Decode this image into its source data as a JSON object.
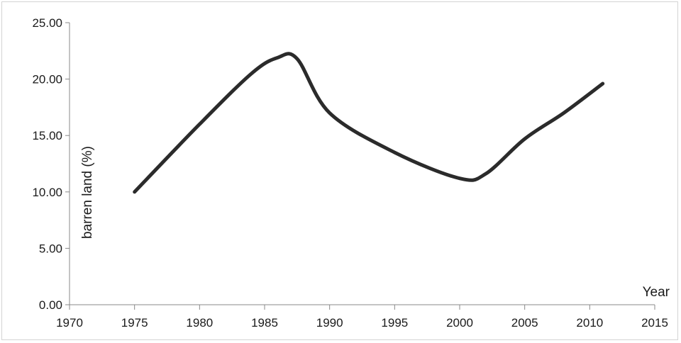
{
  "chart_data": {
    "type": "line",
    "title": "",
    "xlabel": "Year",
    "ylabel": "barren land (%)",
    "x_ticks": [
      "1970",
      "1975",
      "1980",
      "1985",
      "1990",
      "1995",
      "2000",
      "2005",
      "2010",
      "2015"
    ],
    "y_ticks": [
      "0.00",
      "5.00",
      "10.00",
      "15.00",
      "20.00",
      "25.00"
    ],
    "xlim": [
      1970,
      2015
    ],
    "ylim": [
      0,
      25
    ],
    "grid": false,
    "legend": "none",
    "smooth": true,
    "line_color": "#2b2b2b",
    "series": [
      {
        "x": [
          1975,
          1980,
          1984,
          1986,
          1987.5,
          1990,
          1995,
          2000,
          2002,
          2005,
          2008,
          2011
        ],
        "y": [
          10.0,
          16.0,
          20.5,
          21.9,
          21.8,
          17.0,
          13.5,
          11.2,
          11.6,
          14.7,
          17.0,
          19.6
        ]
      }
    ]
  }
}
